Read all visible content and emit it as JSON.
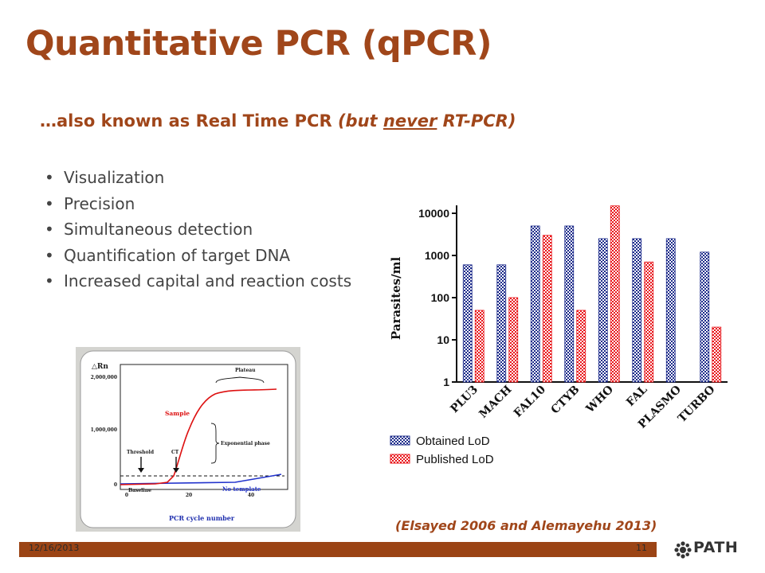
{
  "slide": {
    "title": "Quantitative PCR (qPCR)",
    "subtitle": {
      "part1": "…also known as Real Time PCR ",
      "part2": "(but ",
      "part3": "never",
      "part4": " RT-PCR)"
    },
    "bullets": [
      "Visualization",
      "Precision",
      "Simultaneous detection",
      "Quantification of target DNA",
      "Increased capital and reaction costs"
    ],
    "citation": "(Elsayed 2006 and Alemayehu 2013)",
    "footer": {
      "date": "12/16/2013",
      "page": "11"
    },
    "logo": {
      "text": "PATH",
      "icon": "path-logo-icon"
    }
  },
  "colors": {
    "accent": "#a0461a",
    "footer": "#9b4415",
    "obtained": "#1c2b8a",
    "published": "#e8161b"
  },
  "chart_data": [
    {
      "type": "bar",
      "ylabel": "Parasites/ml",
      "yscale": "log",
      "ylim": [
        1,
        10000
      ],
      "yticks": [
        "1",
        "10",
        "100",
        "1000",
        "10000"
      ],
      "categories": [
        "PLU3",
        "MACH",
        "FAL10",
        "CTYB",
        "WHO",
        "FAL",
        "PLASMO",
        "TURBO"
      ],
      "series": [
        {
          "name": "Obtained LoD",
          "values": [
            600,
            600,
            5000,
            5000,
            2500,
            2500,
            2500,
            1200
          ]
        },
        {
          "name": "Published LoD",
          "values": [
            50,
            100,
            3000,
            50,
            15000,
            700,
            null,
            20
          ]
        }
      ],
      "legend": "bottom-left",
      "grid": false
    },
    {
      "type": "line",
      "ylabel": "△Rn",
      "xlabel": "PCR cycle number",
      "xticks": [
        "0",
        "20",
        "40"
      ],
      "yticks": [
        "0",
        "1,000,000",
        "2,000,000"
      ],
      "annotations": [
        "Plateau",
        "Sample",
        "Exponential phase",
        "Threshold",
        "CT",
        "Baseline",
        "No template"
      ]
    }
  ]
}
